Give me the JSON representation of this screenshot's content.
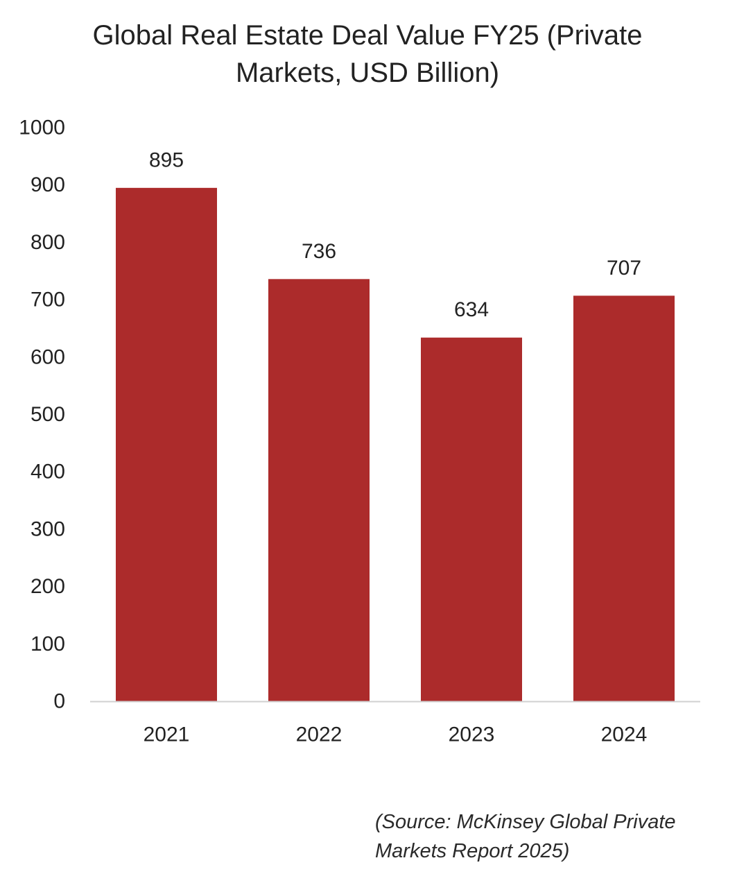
{
  "chart_data": {
    "type": "bar",
    "title_lines": [
      "Global Real Estate Deal Value FY25 (Private",
      "Markets, USD Billion)"
    ],
    "categories": [
      "2021",
      "2022",
      "2023",
      "2024"
    ],
    "values": [
      895,
      736,
      634,
      707
    ],
    "data_labels": [
      "895",
      "736",
      "634",
      "707"
    ],
    "ylim": [
      0,
      1000
    ],
    "yticks": [
      0,
      100,
      200,
      300,
      400,
      500,
      600,
      700,
      800,
      900,
      1000
    ],
    "ytick_labels": [
      "0",
      "100",
      "200",
      "300",
      "400",
      "500",
      "600",
      "700",
      "800",
      "900",
      "1000"
    ],
    "xlabel": "",
    "ylabel": "",
    "grid": false,
    "legend": "none",
    "bar_color": "#ac2b2b",
    "axis_color": "#d0d0d0"
  },
  "source": {
    "line1": "(Source: McKinsey Global Private",
    "line2": "Markets Report 2025)"
  }
}
